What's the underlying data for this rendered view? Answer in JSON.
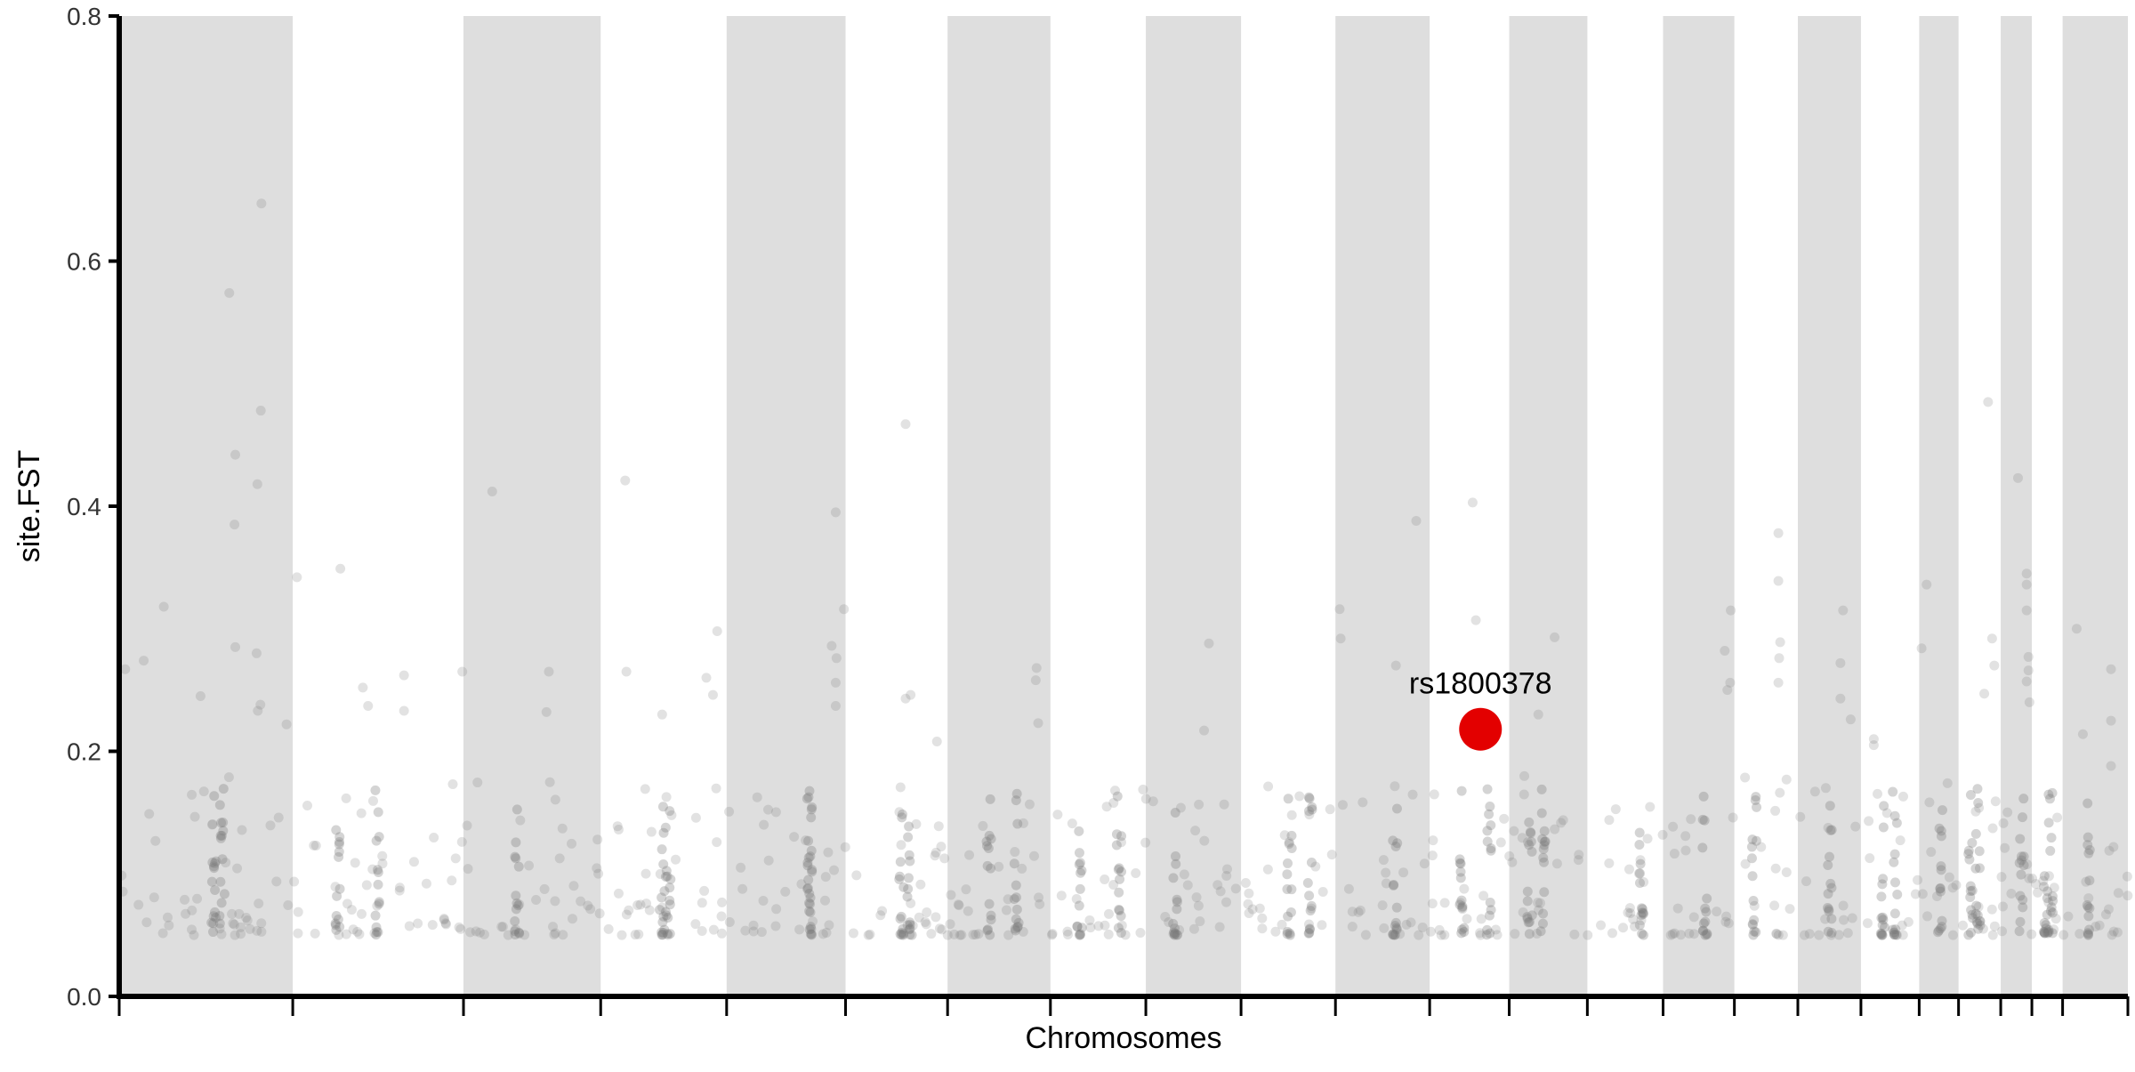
{
  "chart_data": {
    "type": "scatter",
    "title": "",
    "xlabel": "Chromosomes",
    "ylabel": "site.FST",
    "ylim": [
      0,
      0.8
    ],
    "yticks": [
      "0.0",
      "0.2",
      "0.4",
      "0.6",
      "0.8"
    ],
    "grid": false,
    "chromosome_bands": "alternating grey / white",
    "colors": {
      "band": "#dedede",
      "points": "#7a7a7a",
      "highlight": "#e30000",
      "axis": "#000000"
    },
    "chromosome_boundaries": [
      0,
      0.0864,
      0.1714,
      0.2397,
      0.3024,
      0.3616,
      0.4124,
      0.4636,
      0.5111,
      0.5585,
      0.6055,
      0.6524,
      0.692,
      0.7309,
      0.7686,
      0.8041,
      0.8357,
      0.8671,
      0.8961,
      0.9157,
      0.9367,
      0.9522,
      0.9675,
      1.0
    ],
    "highlight": {
      "label": "rs1800378",
      "x": 0.6777,
      "y": 0.218
    },
    "peaks": [
      {
        "x": 0.0548,
        "y": 0.574
      },
      {
        "x": 0.0708,
        "y": 0.647
      },
      {
        "x": 0.0705,
        "y": 0.478
      },
      {
        "x": 0.0578,
        "y": 0.442
      },
      {
        "x": 0.0688,
        "y": 0.418
      },
      {
        "x": 0.0574,
        "y": 0.385
      },
      {
        "x": 0.0222,
        "y": 0.318
      },
      {
        "x": 0.0578,
        "y": 0.285
      },
      {
        "x": 0.0684,
        "y": 0.28
      },
      {
        "x": 0.0122,
        "y": 0.274
      },
      {
        "x": 0.003,
        "y": 0.267
      },
      {
        "x": 0.0703,
        "y": 0.238
      },
      {
        "x": 0.069,
        "y": 0.233
      },
      {
        "x": 0.0405,
        "y": 0.245
      },
      {
        "x": 0.0833,
        "y": 0.222
      },
      {
        "x": 0.0885,
        "y": 0.342
      },
      {
        "x": 0.1101,
        "y": 0.349
      },
      {
        "x": 0.1213,
        "y": 0.252
      },
      {
        "x": 0.1239,
        "y": 0.237
      },
      {
        "x": 0.1418,
        "y": 0.262
      },
      {
        "x": 0.1418,
        "y": 0.233
      },
      {
        "x": 0.1708,
        "y": 0.265
      },
      {
        "x": 0.1857,
        "y": 0.412
      },
      {
        "x": 0.2139,
        "y": 0.265
      },
      {
        "x": 0.2127,
        "y": 0.232
      },
      {
        "x": 0.2519,
        "y": 0.421
      },
      {
        "x": 0.2525,
        "y": 0.265
      },
      {
        "x": 0.2703,
        "y": 0.23
      },
      {
        "x": 0.2977,
        "y": 0.298
      },
      {
        "x": 0.2923,
        "y": 0.26
      },
      {
        "x": 0.2956,
        "y": 0.246
      },
      {
        "x": 0.3567,
        "y": 0.395
      },
      {
        "x": 0.3608,
        "y": 0.316
      },
      {
        "x": 0.3547,
        "y": 0.286
      },
      {
        "x": 0.3571,
        "y": 0.276
      },
      {
        "x": 0.3567,
        "y": 0.256
      },
      {
        "x": 0.3567,
        "y": 0.237
      },
      {
        "x": 0.3915,
        "y": 0.467
      },
      {
        "x": 0.394,
        "y": 0.246
      },
      {
        "x": 0.3915,
        "y": 0.243
      },
      {
        "x": 0.4071,
        "y": 0.208
      },
      {
        "x": 0.4567,
        "y": 0.268
      },
      {
        "x": 0.4563,
        "y": 0.258
      },
      {
        "x": 0.4575,
        "y": 0.223
      },
      {
        "x": 0.4958,
        "y": 0.168
      },
      {
        "x": 0.5401,
        "y": 0.217
      },
      {
        "x": 0.5425,
        "y": 0.288
      },
      {
        "x": 0.6076,
        "y": 0.316
      },
      {
        "x": 0.6081,
        "y": 0.292
      },
      {
        "x": 0.6356,
        "y": 0.27
      },
      {
        "x": 0.6457,
        "y": 0.388
      },
      {
        "x": 0.6738,
        "y": 0.403
      },
      {
        "x": 0.6754,
        "y": 0.307
      },
      {
        "x": 0.7146,
        "y": 0.293
      },
      {
        "x": 0.7065,
        "y": 0.23
      },
      {
        "x": 0.7993,
        "y": 0.282
      },
      {
        "x": 0.802,
        "y": 0.256
      },
      {
        "x": 0.8006,
        "y": 0.25
      },
      {
        "x": 0.8023,
        "y": 0.315
      },
      {
        "x": 0.826,
        "y": 0.378
      },
      {
        "x": 0.826,
        "y": 0.339
      },
      {
        "x": 0.8269,
        "y": 0.289
      },
      {
        "x": 0.8264,
        "y": 0.276
      },
      {
        "x": 0.826,
        "y": 0.256
      },
      {
        "x": 0.8582,
        "y": 0.315
      },
      {
        "x": 0.8569,
        "y": 0.272
      },
      {
        "x": 0.8569,
        "y": 0.243
      },
      {
        "x": 0.862,
        "y": 0.226
      },
      {
        "x": 0.8998,
        "y": 0.336
      },
      {
        "x": 0.8973,
        "y": 0.284
      },
      {
        "x": 0.8735,
        "y": 0.21
      },
      {
        "x": 0.8735,
        "y": 0.205
      },
      {
        "x": 0.9304,
        "y": 0.485
      },
      {
        "x": 0.9453,
        "y": 0.423
      },
      {
        "x": 0.9496,
        "y": 0.345
      },
      {
        "x": 0.9496,
        "y": 0.336
      },
      {
        "x": 0.9496,
        "y": 0.315
      },
      {
        "x": 0.9505,
        "y": 0.277
      },
      {
        "x": 0.9505,
        "y": 0.266
      },
      {
        "x": 0.9496,
        "y": 0.257
      },
      {
        "x": 0.951,
        "y": 0.24
      },
      {
        "x": 0.9324,
        "y": 0.292
      },
      {
        "x": 0.9335,
        "y": 0.27
      },
      {
        "x": 0.9285,
        "y": 0.247
      },
      {
        "x": 0.9745,
        "y": 0.3
      },
      {
        "x": 0.9776,
        "y": 0.214
      },
      {
        "x": 0.9916,
        "y": 0.267
      },
      {
        "x": 0.9916,
        "y": 0.225
      },
      {
        "x": 0.9916,
        "y": 0.188
      }
    ]
  }
}
